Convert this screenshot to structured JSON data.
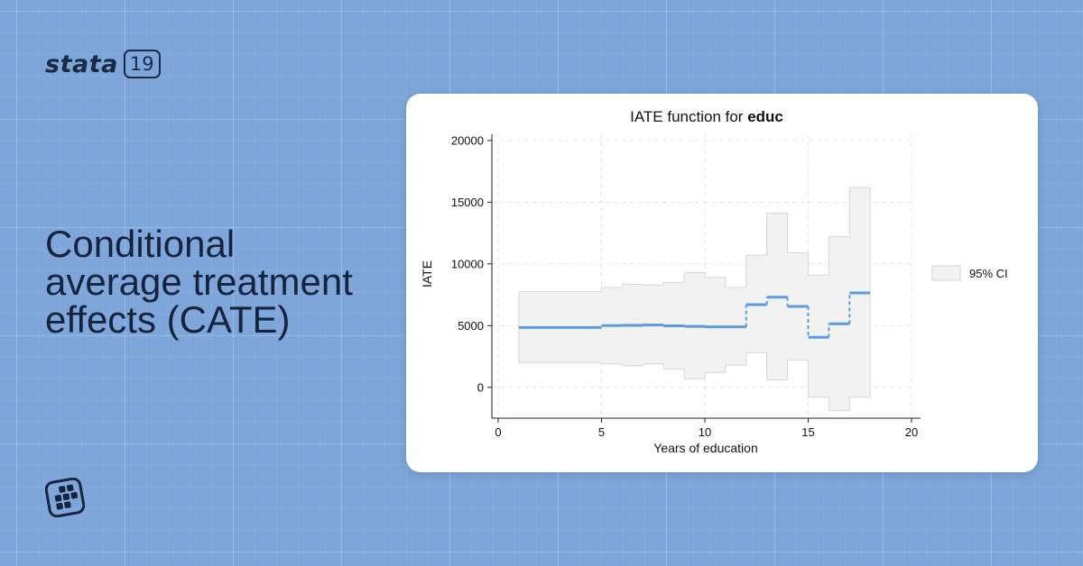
{
  "brand": {
    "name": "stata",
    "version": "19"
  },
  "headline": {
    "lines": [
      "Conditional",
      "average treatment",
      "effects (CATE)"
    ]
  },
  "colors": {
    "background": "#7ea6da",
    "text_dark": "#15243c",
    "line": "#5b9bde",
    "ci_fill": "#f2f2f2",
    "ci_stroke": "#d6d6d6"
  },
  "icons": {
    "brand_icon": "stata-app-grid-icon"
  },
  "chart_data": {
    "type": "line",
    "title_prefix": "IATE function for ",
    "title_bold": "educ",
    "xlabel": "Years of education",
    "ylabel": "IATE",
    "xlim": [
      0,
      20
    ],
    "ylim": [
      -2500,
      20500
    ],
    "xticks": [
      0,
      5,
      10,
      15,
      20
    ],
    "yticks": [
      0,
      5000,
      10000,
      15000,
      20000
    ],
    "grid": true,
    "legend": {
      "label": "95% CI",
      "position": "right"
    },
    "series": [
      {
        "steps": [
          {
            "x0": 1,
            "x1": 5,
            "y": 4850,
            "lo": 2000,
            "hi": 7750
          },
          {
            "x0": 5,
            "x1": 6,
            "y": 5000,
            "lo": 1900,
            "hi": 8100
          },
          {
            "x0": 6,
            "x1": 7,
            "y": 5020,
            "lo": 1750,
            "hi": 8350
          },
          {
            "x0": 7,
            "x1": 8,
            "y": 5050,
            "lo": 1900,
            "hi": 8300
          },
          {
            "x0": 8,
            "x1": 9,
            "y": 4980,
            "lo": 1500,
            "hi": 8500
          },
          {
            "x0": 9,
            "x1": 10,
            "y": 4940,
            "lo": 700,
            "hi": 9300
          },
          {
            "x0": 10,
            "x1": 11,
            "y": 4900,
            "lo": 1200,
            "hi": 8900
          },
          {
            "x0": 11,
            "x1": 12,
            "y": 4900,
            "lo": 1800,
            "hi": 8100
          },
          {
            "x0": 12,
            "x1": 13,
            "y": 6700,
            "lo": 2800,
            "hi": 10700
          },
          {
            "x0": 13,
            "x1": 14,
            "y": 7300,
            "lo": 600,
            "hi": 14100
          },
          {
            "x0": 14,
            "x1": 15,
            "y": 6550,
            "lo": 2200,
            "hi": 10900
          },
          {
            "x0": 15,
            "x1": 16,
            "y": 4050,
            "lo": -800,
            "hi": 9100
          },
          {
            "x0": 16,
            "x1": 17,
            "y": 5150,
            "lo": -1900,
            "hi": 12200
          },
          {
            "x0": 17,
            "x1": 18,
            "y": 7650,
            "lo": -800,
            "hi": 16200
          }
        ]
      }
    ]
  }
}
